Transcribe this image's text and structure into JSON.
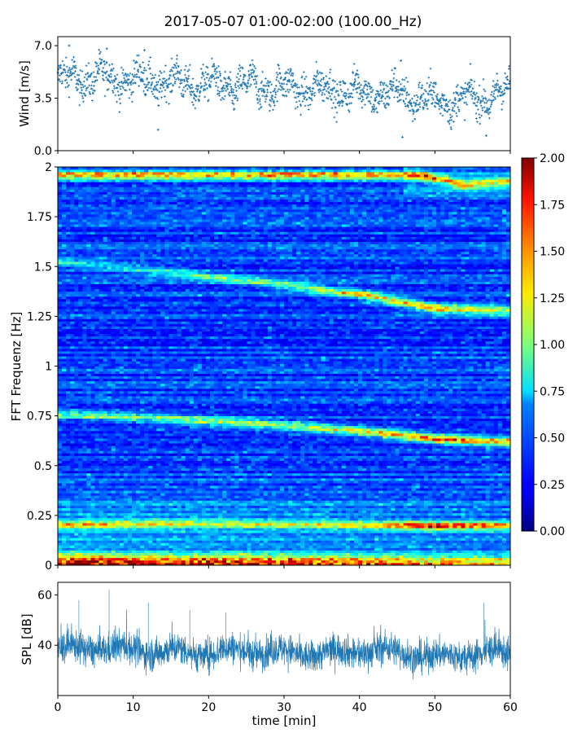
{
  "figure": {
    "title": "2017-05-07 01:00-02:00 (100.00_Hz)"
  },
  "chart_data": [
    {
      "id": "wind",
      "type": "scatter",
      "title": "",
      "xlabel": "",
      "ylabel": "Wind [m/s]",
      "xlim": [
        0,
        60
      ],
      "ylim": [
        0,
        7.6
      ],
      "yticks": [
        0.0,
        3.5,
        7.0
      ],
      "ytick_labels": [
        "0.0",
        "3.5",
        "7.0"
      ],
      "xticks": [
        0,
        10,
        20,
        30,
        40,
        50,
        60
      ],
      "color": "#1f77b4",
      "marker": "+",
      "grid": false,
      "trend": {
        "x": [
          0,
          5,
          10,
          15,
          20,
          25,
          30,
          35,
          40,
          45,
          50,
          55,
          60
        ],
        "y": [
          4.7,
          4.9,
          4.7,
          4.6,
          4.4,
          4.3,
          4.2,
          4.1,
          3.9,
          3.8,
          3.3,
          3.4,
          3.9
        ]
      },
      "highlights": [
        {
          "x": 1.5,
          "y": 7.0
        },
        {
          "x": 6.5,
          "y": 6.8
        },
        {
          "x": 11.5,
          "y": 6.7
        },
        {
          "x": 13.3,
          "y": 1.4
        },
        {
          "x": 45.5,
          "y": 6.0
        },
        {
          "x": 45.7,
          "y": 0.9
        },
        {
          "x": 56.8,
          "y": 1.0
        }
      ]
    },
    {
      "id": "spectrogram",
      "type": "heatmap",
      "title": "",
      "xlabel": "",
      "ylabel": "FFT Frequenz [Hz]",
      "xlim": [
        0,
        60
      ],
      "ylim": [
        0,
        2
      ],
      "yticks": [
        0,
        0.25,
        0.5,
        0.75,
        1,
        1.25,
        1.5,
        1.75,
        2
      ],
      "ytick_labels": [
        "0",
        "0.25",
        "0.5",
        "0.75",
        "1",
        "1.25",
        "1.5",
        "1.75",
        "2"
      ],
      "xticks": [
        0,
        10,
        20,
        30,
        40,
        50,
        60
      ],
      "colormap": "jet",
      "colorbar": {
        "range": [
          0.0,
          2.0
        ],
        "ticks": [
          "0.00",
          "0.25",
          "0.50",
          "0.75",
          "1.00",
          "1.25",
          "1.50",
          "1.75",
          "2.00"
        ]
      },
      "features": [
        {
          "name": "band",
          "x": [
            0,
            10,
            20,
            30,
            40,
            50,
            60
          ],
          "f": [
            0.76,
            0.745,
            0.725,
            0.705,
            0.675,
            0.635,
            0.62
          ],
          "level": [
            0.7,
            0.7,
            0.85,
            0.9,
            1.0,
            1.5,
            1.3
          ]
        },
        {
          "name": "band",
          "x": [
            0,
            10,
            20,
            30,
            40,
            50,
            60
          ],
          "f": [
            1.52,
            1.49,
            1.45,
            1.41,
            1.36,
            1.29,
            1.28
          ],
          "level": [
            0.5,
            0.5,
            0.6,
            0.7,
            1.0,
            1.2,
            0.9
          ]
        },
        {
          "name": "band",
          "x": [
            48,
            54,
            60
          ],
          "f": [
            1.96,
            1.91,
            1.93
          ],
          "level": [
            1.2,
            1.0,
            0.9
          ]
        },
        {
          "name": "band",
          "x": [
            0,
            10,
            20,
            30,
            40,
            50,
            60
          ],
          "f": [
            0.205,
            0.21,
            0.215,
            0.21,
            0.205,
            0.2,
            0.2
          ],
          "level": [
            0.9,
            0.8,
            0.7,
            0.7,
            0.8,
            1.4,
            1.0
          ]
        }
      ],
      "low_frequency_energy": {
        "f_max": 0.08,
        "level": [
          1.7,
          1.5,
          1.3,
          1.0
        ]
      }
    },
    {
      "id": "spl",
      "type": "line",
      "title": "",
      "xlabel": "time [min]",
      "ylabel": "SPL [dB]",
      "xlim": [
        0,
        60
      ],
      "ylim": [
        20,
        65
      ],
      "yticks": [
        40,
        60
      ],
      "ytick_labels": [
        "40",
        "60"
      ],
      "xticks": [
        0,
        10,
        20,
        30,
        40,
        50,
        60
      ],
      "xtick_labels": [
        "0",
        "10",
        "20",
        "30",
        "40",
        "50",
        "60"
      ],
      "color": "#1f77b4",
      "grid": false,
      "mean": {
        "x": [
          0,
          5,
          10,
          15,
          20,
          25,
          30,
          35,
          40,
          45,
          50,
          55,
          60
        ],
        "y": [
          38,
          39,
          38,
          37.5,
          37,
          38,
          37,
          36.5,
          38,
          37.5,
          35,
          36.5,
          37
        ]
      },
      "peaks": [
        {
          "x": 2.8,
          "y": 58
        },
        {
          "x": 6.8,
          "y": 62
        },
        {
          "x": 12.0,
          "y": 57
        },
        {
          "x": 17.5,
          "y": 54
        },
        {
          "x": 22.3,
          "y": 53
        },
        {
          "x": 56.5,
          "y": 57
        }
      ]
    }
  ]
}
